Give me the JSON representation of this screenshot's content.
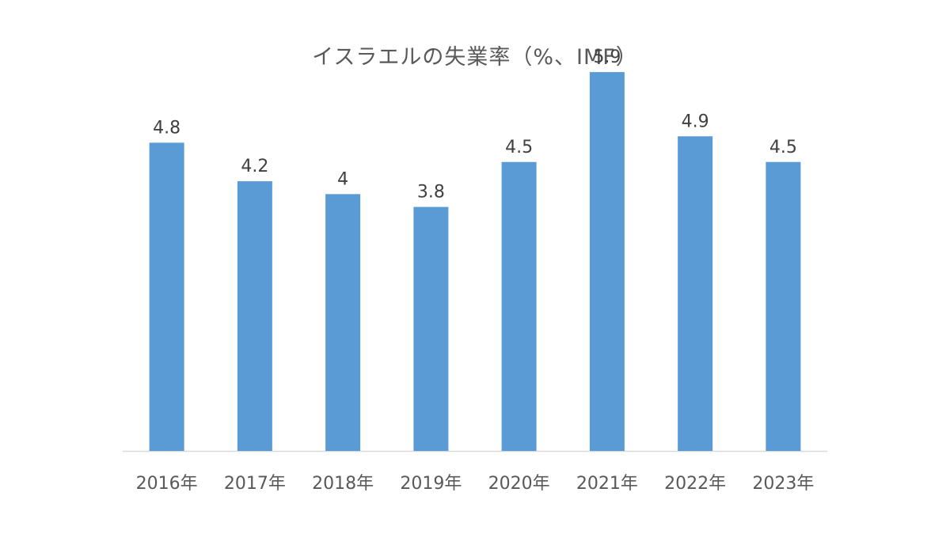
{
  "colors": {
    "bar": "#5b9bd5",
    "axis": "#d9d9d9",
    "text": "#595959"
  },
  "chart_data": {
    "type": "bar",
    "title": "イスラエルの失業率（%、IMF）",
    "categories": [
      "2016年",
      "2017年",
      "2018年",
      "2019年",
      "2020年",
      "2021年",
      "2022年",
      "2023年"
    ],
    "values": [
      4.8,
      4.2,
      4,
      3.8,
      4.5,
      5.9,
      4.9,
      4.5
    ],
    "data_labels": [
      "4.8",
      "4.2",
      "4",
      "3.8",
      "4.5",
      "5.9",
      "4.9",
      "4.5"
    ],
    "ylim": [
      0,
      6
    ],
    "grid": false,
    "legend": "none",
    "xlabel": "",
    "ylabel": ""
  }
}
